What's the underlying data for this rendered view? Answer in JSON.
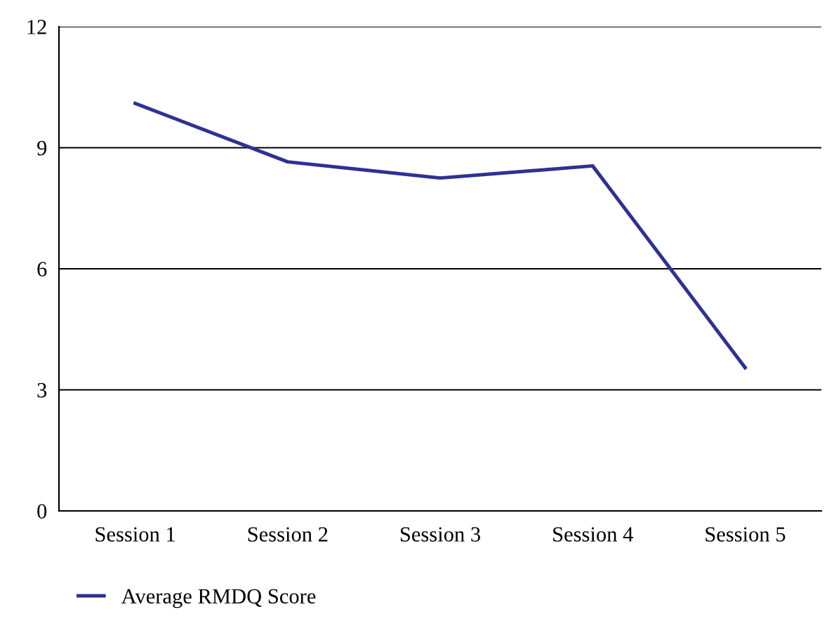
{
  "chart_data": {
    "type": "line",
    "categories": [
      "Session 1",
      "Session 2",
      "Session 3",
      "Session 4",
      "Session 5"
    ],
    "series": [
      {
        "name": "Average RMDQ Score",
        "color": "#2e3192",
        "values": [
          10.1,
          8.65,
          8.25,
          8.55,
          3.55
        ]
      }
    ],
    "ylim": [
      0,
      12
    ],
    "yticks": [
      0,
      3,
      6,
      9,
      12
    ],
    "grid": "y",
    "legend": "bottom left",
    "marker": "none",
    "line_style": "solid"
  }
}
